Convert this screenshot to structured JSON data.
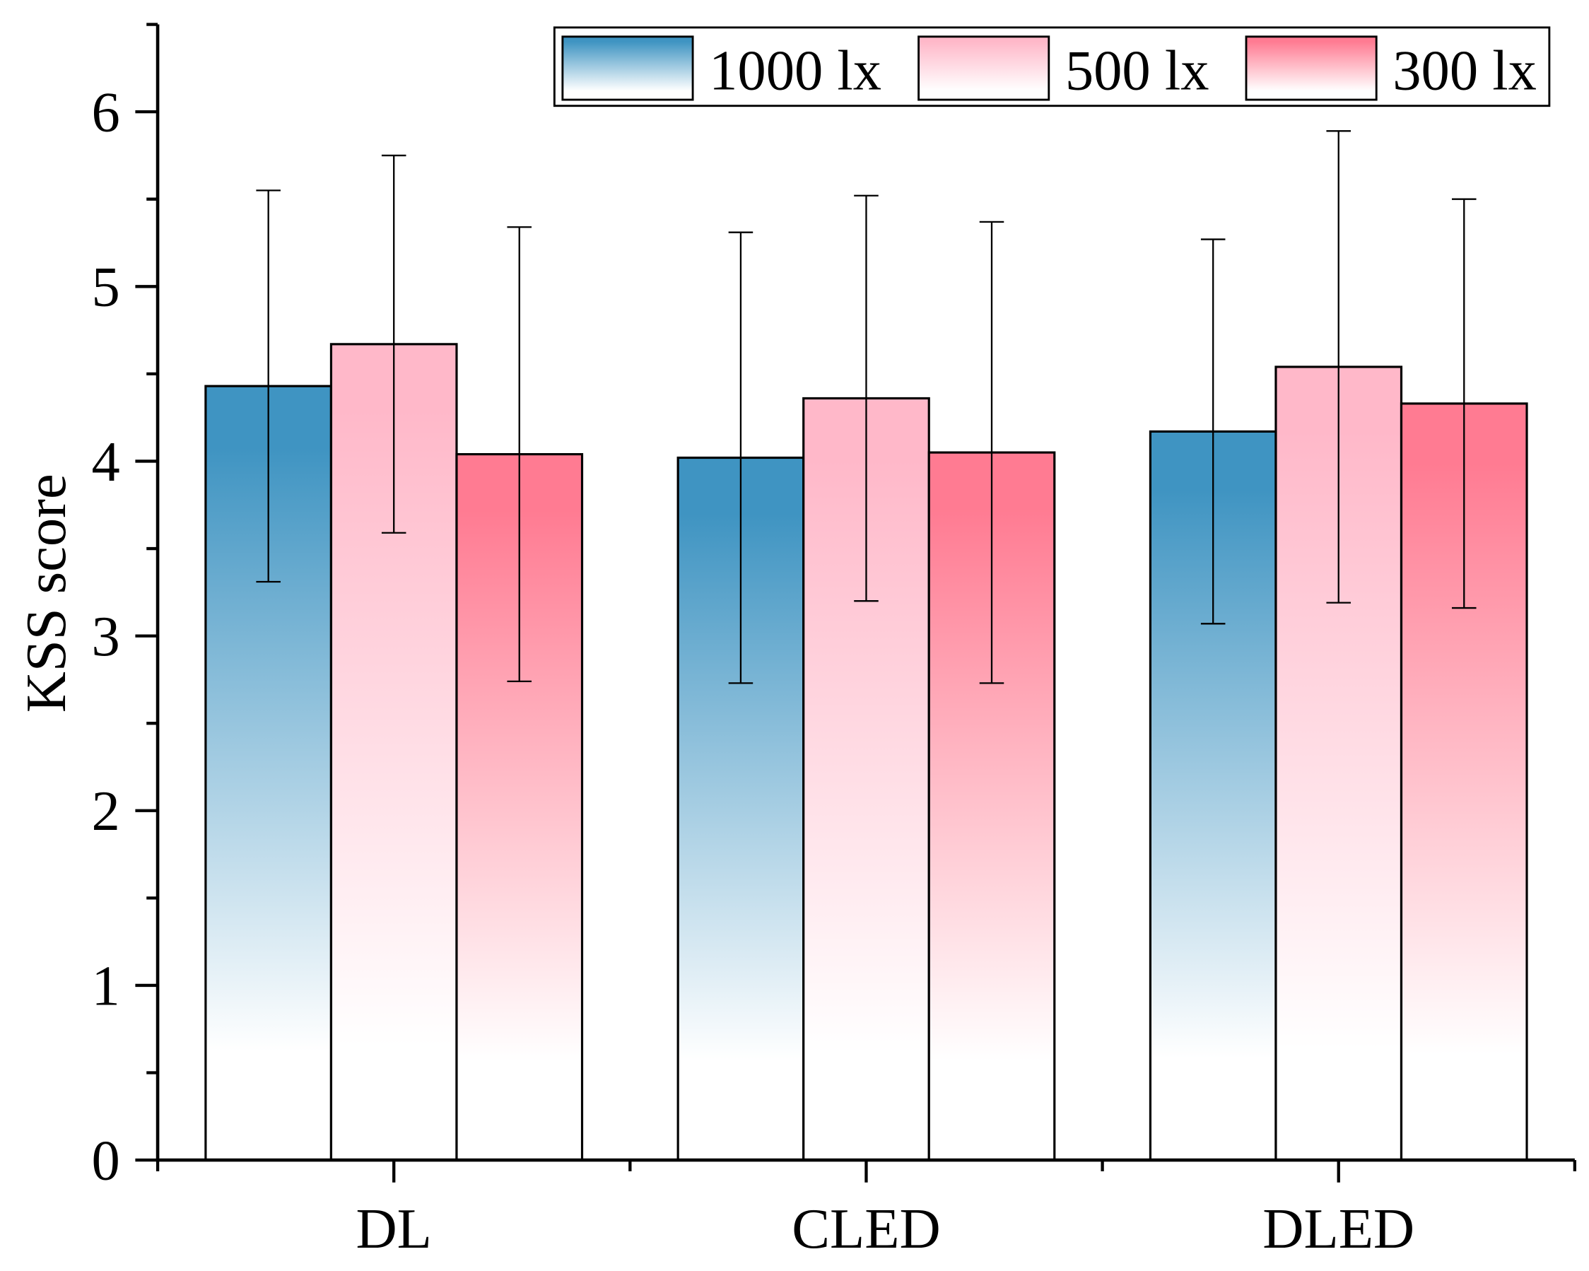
{
  "chart_data": {
    "type": "bar",
    "categories": [
      "DL",
      "CLED",
      "DLED"
    ],
    "series": [
      {
        "name": "1000 lx",
        "values": [
          4.43,
          4.02,
          4.17
        ],
        "errors": [
          1.12,
          1.29,
          1.1
        ],
        "color": "#3F94C2"
      },
      {
        "name": "500 lx",
        "values": [
          4.67,
          4.36,
          4.54
        ],
        "errors": [
          1.08,
          1.16,
          1.35
        ],
        "color": "#FFB8C9"
      },
      {
        "name": "300 lx",
        "values": [
          4.04,
          4.05,
          4.33
        ],
        "errors": [
          1.3,
          1.32,
          1.17
        ],
        "color": "#FF7B92"
      }
    ],
    "ylabel": "KSS score",
    "ylim": [
      0,
      6.5
    ],
    "yticks": [
      0,
      1,
      2,
      3,
      4,
      5,
      6
    ],
    "legend": "top-right",
    "grid": false
  }
}
